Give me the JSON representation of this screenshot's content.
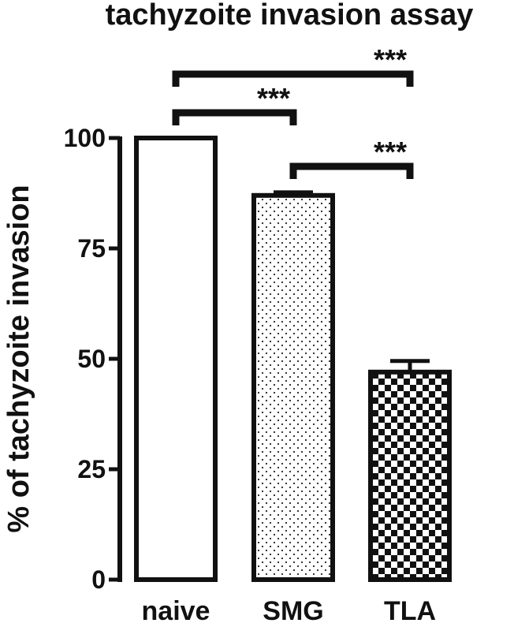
{
  "chart_data": {
    "type": "bar",
    "title": "tachyzoite invasion assay",
    "xlabel": "",
    "ylabel": "% of tachyzoite invasion",
    "categories": [
      "naive",
      "SMG",
      "TLA"
    ],
    "values": [
      100,
      87,
      47
    ],
    "errors": [
      0,
      0.7,
      2.5
    ],
    "ylim": [
      0,
      100
    ],
    "yticks": [
      "0",
      "25",
      "50",
      "75",
      "100"
    ],
    "patterns": [
      "none",
      "dots",
      "checkerboard"
    ],
    "significance": [
      {
        "from": "naive",
        "to": "SMG",
        "label": "***"
      },
      {
        "from": "naive",
        "to": "TLA",
        "label": "***"
      },
      {
        "from": "SMG",
        "to": "TLA",
        "label": "***"
      }
    ]
  }
}
